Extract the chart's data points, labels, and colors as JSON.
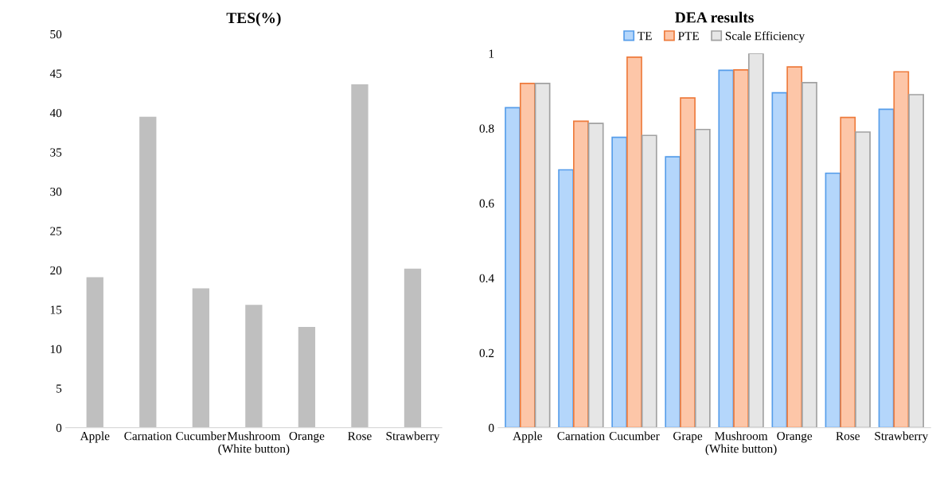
{
  "chart_data": [
    {
      "type": "bar",
      "title": "TES(%)",
      "categories": [
        "Apple",
        "Carnation",
        "Cucumber",
        "Mushroom\n(White button)",
        "Orange",
        "Rose",
        "Strawberry"
      ],
      "values": [
        19.1,
        39.5,
        17.7,
        15.6,
        12.8,
        43.6,
        20.2
      ],
      "color": "#bfbfbf",
      "ylim": [
        0,
        50
      ],
      "yticks": [
        0,
        5,
        10,
        15,
        20,
        25,
        30,
        35,
        40,
        45,
        50
      ],
      "grid": false,
      "legend": false
    },
    {
      "type": "bar",
      "title": "DEA results",
      "categories": [
        "Apple",
        "Carnation",
        "Cucumber",
        "Grape",
        "Mushroom\n(White button)",
        "Orange",
        "Rose",
        "Strawberry"
      ],
      "series": [
        {
          "name": "TE",
          "color": "#b4d6fb",
          "values": [
            0.855,
            0.689,
            0.776,
            0.724,
            0.955,
            0.895,
            0.68,
            0.851
          ]
        },
        {
          "name": "PTE",
          "color": "#fdc6a8",
          "values": [
            0.92,
            0.819,
            0.99,
            0.881,
            0.956,
            0.964,
            0.829,
            0.951
          ]
        },
        {
          "name": "Scale Efficiency",
          "color": "#e6e6e6",
          "values": [
            0.92,
            0.813,
            0.781,
            0.797,
            1.0,
            0.922,
            0.79,
            0.89
          ]
        }
      ],
      "ylim": [
        0,
        1
      ],
      "yticks": [
        0,
        0.2,
        0.4,
        0.6,
        0.8,
        1
      ],
      "grid": false,
      "legend": "top"
    }
  ]
}
